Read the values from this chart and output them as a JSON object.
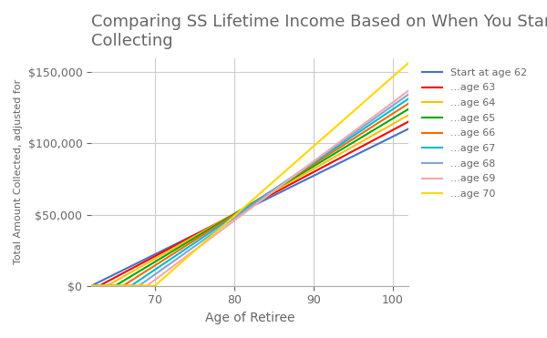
{
  "title": "Comparing SS Lifetime Income Based on When You Start\nCollecting",
  "xlabel": "Age of Retiree",
  "ylabel": "Total Amount Collected, adjusted for",
  "series": [
    {
      "label": "Start at age 62",
      "start_age": 62,
      "annual": 2760,
      "color": "#4472C4"
    },
    {
      "label": "...age 63",
      "start_age": 63,
      "annual": 2960,
      "color": "#FF0000"
    },
    {
      "label": "...age 64",
      "start_age": 64,
      "annual": 3160,
      "color": "#FFBF00"
    },
    {
      "label": "...age 65",
      "start_age": 65,
      "annual": 3360,
      "color": "#00AA00"
    },
    {
      "label": "...age 66",
      "start_age": 66,
      "annual": 3560,
      "color": "#FF6600"
    },
    {
      "label": "...age 67",
      "start_age": 67,
      "annual": 3760,
      "color": "#00BBCC"
    },
    {
      "label": "...age 68",
      "start_age": 68,
      "annual": 3960,
      "color": "#7DA7D9"
    },
    {
      "label": "...age 69",
      "start_age": 69,
      "annual": 4160,
      "color": "#F4A8A8"
    },
    {
      "label": "...age 70",
      "start_age": 70,
      "annual": 4900,
      "color": "#FFD700"
    }
  ],
  "xlim": [
    62,
    102
  ],
  "ylim": [
    0,
    160000
  ],
  "xticks": [
    70,
    80,
    90,
    100
  ],
  "yticks": [
    0,
    50000,
    100000,
    150000
  ],
  "grid_color": "#CCCCCC",
  "bg_color": "#FFFFFF",
  "title_color": "#666666",
  "label_color": "#666666",
  "tick_color": "#666666"
}
